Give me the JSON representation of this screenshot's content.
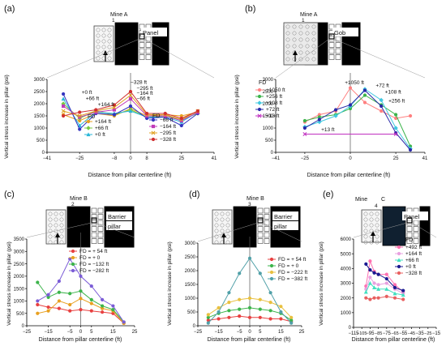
{
  "chart_data": [
    {
      "id": "a",
      "type": "line",
      "panel_label": "(a)",
      "mine_label": "Mine A",
      "mine_number": "1",
      "plan_labels": [
        "Panel"
      ],
      "xlabel": "Distance from pillar centerline (ft)",
      "ylabel": "Vertical stress increase in pillar (psi)",
      "xlim": [
        -41,
        41
      ],
      "ylim": [
        0,
        3000
      ],
      "xticks": [
        "−41",
        "−25",
        "−8",
        "0",
        "8",
        "25",
        "41"
      ],
      "xtick_values": [
        -41,
        -25,
        -8,
        0,
        8,
        25,
        41
      ],
      "yticks": [
        "0",
        "500",
        "1000",
        "1500",
        "2000",
        "2500",
        "3000"
      ],
      "ytick_values": [
        0,
        500,
        1000,
        1500,
        2000,
        2500,
        3000
      ],
      "legend_titles": [
        "FD",
        "FD"
      ],
      "annotations": [
        {
          "text": "+0 ft",
          "x": -24,
          "y": 2400
        },
        {
          "text": "+66 ft",
          "x": -22,
          "y": 2150
        },
        {
          "text": "+164 ft",
          "x": -16,
          "y": 1900
        },
        {
          "text": "−328 ft",
          "x": 0,
          "y": 2820
        },
        {
          "text": "−295 ft",
          "x": 3,
          "y": 2560
        },
        {
          "text": "−164 ft",
          "x": 3,
          "y": 2360
        },
        {
          "text": "−66 ft",
          "x": 3,
          "y": 2150
        }
      ],
      "series": [
        {
          "name": "+164 ft",
          "color": "#e8a020",
          "marker": "circle",
          "x": [
            -33,
            -25,
            -17,
            -8,
            0,
            8,
            17,
            25,
            33
          ],
          "y": [
            1550,
            1300,
            1600,
            1500,
            1800,
            1500,
            1550,
            1500,
            1650
          ]
        },
        {
          "name": "+66 ft",
          "color": "#7ac943",
          "marker": "diamond",
          "x": [
            -33,
            -25,
            -17,
            -8,
            0,
            8,
            17,
            25,
            33
          ],
          "y": [
            2000,
            1400,
            1700,
            1550,
            1750,
            1450,
            1500,
            1350,
            1600
          ]
        },
        {
          "name": "+0 ft",
          "color": "#29b6d8",
          "marker": "triangle",
          "x": [
            -33,
            -25,
            -17,
            -8,
            0,
            8,
            17,
            25,
            33
          ],
          "y": [
            2200,
            1100,
            1650,
            1600,
            1700,
            1450,
            1450,
            1250,
            1650
          ]
        },
        {
          "name": "−66 ft",
          "color": "#3434c0",
          "marker": "circle",
          "x": [
            -33,
            -25,
            -17,
            -8,
            0,
            8,
            17,
            25,
            33
          ],
          "y": [
            2400,
            950,
            1600,
            1550,
            1900,
            1400,
            1450,
            1100,
            1600
          ]
        },
        {
          "name": "−164 ft",
          "color": "#c03ab8",
          "marker": "square",
          "x": [
            -33,
            -25,
            -17,
            -8,
            0,
            8,
            17,
            25,
            33
          ],
          "y": [
            1900,
            1450,
            1650,
            1750,
            2200,
            1500,
            1500,
            1300,
            1650
          ]
        },
        {
          "name": "−295 ft",
          "color": "#e0a020",
          "marker": "x",
          "x": [
            -33,
            -25,
            -17,
            -8,
            0,
            8,
            17,
            25,
            33
          ],
          "y": [
            1700,
            1500,
            1700,
            1850,
            2350,
            1550,
            1550,
            1350,
            1700
          ]
        },
        {
          "name": "−328 ft",
          "color": "#d03030",
          "marker": "circle",
          "x": [
            -33,
            -25,
            -17,
            -8,
            0,
            8,
            17,
            25,
            33
          ],
          "y": [
            1500,
            1650,
            1750,
            1950,
            2500,
            1600,
            1600,
            1400,
            1700
          ]
        }
      ]
    },
    {
      "id": "b",
      "type": "line",
      "panel_label": "(b)",
      "mine_label": "Mine A",
      "mine_number": "1",
      "plan_labels": [
        "Gob"
      ],
      "xlabel": "Distance from pillar centerline (ft)",
      "ylabel": "Vertical stress increase in pillar (psi)",
      "xlim": [
        -41,
        41
      ],
      "ylim": [
        0,
        3000
      ],
      "xticks": [
        "−41",
        "−25",
        "0",
        "25",
        "41"
      ],
      "xtick_values": [
        -41,
        -25,
        0,
        25,
        41
      ],
      "yticks": [
        "0",
        "500",
        "1000",
        "1500",
        "2000",
        "2500",
        "3000"
      ],
      "ytick_values": [
        0,
        500,
        1000,
        1500,
        2000,
        2500,
        3000
      ],
      "legend_titles": [
        "FD"
      ],
      "annotations": [
        {
          "text": "+1050 ft",
          "x": -3,
          "y": 2800
        },
        {
          "text": "+72 ft",
          "x": 14,
          "y": 2680
        },
        {
          "text": "+108 ft",
          "x": 19,
          "y": 2420
        },
        {
          "text": "+256 ft",
          "x": 21,
          "y": 2050
        },
        {
          "text": "+13 ft",
          "x": -16,
          "y": 860
        }
      ],
      "series": [
        {
          "name": "+1050 ft",
          "color": "#ff8080",
          "marker": "circle",
          "x": [
            -25,
            -17,
            -8,
            0,
            8,
            17,
            25,
            33
          ],
          "y": [
            1250,
            1550,
            1700,
            2650,
            2050,
            1700,
            1400,
            1500
          ]
        },
        {
          "name": "+256 ft",
          "color": "#3cb44b",
          "marker": "circle",
          "x": [
            -25,
            -17,
            -8,
            0,
            8,
            17,
            25,
            33
          ],
          "y": [
            1300,
            1450,
            1550,
            1800,
            2350,
            1950,
            1550,
            250
          ]
        },
        {
          "name": "+108 ft",
          "color": "#40c8e0",
          "marker": "diamond",
          "x": [
            -25,
            -17,
            -8,
            0,
            8,
            17,
            25,
            33
          ],
          "y": [
            1050,
            1250,
            1500,
            1900,
            2600,
            2150,
            1000,
            150
          ]
        },
        {
          "name": "+72 ft",
          "color": "#2a2aa8",
          "marker": "circle",
          "x": [
            -25,
            -17,
            -8,
            0,
            8,
            17,
            25,
            33
          ],
          "y": [
            1000,
            1350,
            1750,
            1950,
            2550,
            1900,
            800,
            100
          ]
        },
        {
          "name": "+13 ft",
          "color": "#c030c0",
          "marker": "x",
          "x": [
            -25,
            25
          ],
          "y": [
            750,
            750
          ]
        }
      ]
    },
    {
      "id": "c",
      "type": "line",
      "panel_label": "(c)",
      "mine_label": "Mine B",
      "mine_number": "2",
      "plan_labels": [
        "Barrier",
        "pillar"
      ],
      "xlabel": "Distance from pillar centerline (ft)",
      "ylabel": "Vertical stress increase in pillar (psi)",
      "xlim": [
        -25,
        25
      ],
      "ylim": [
        0,
        3500
      ],
      "xticks": [
        "−25",
        "−15",
        "−5",
        "0",
        "5",
        "15",
        "25"
      ],
      "xtick_values": [
        -25,
        -15,
        -5,
        0,
        5,
        15,
        25
      ],
      "yticks": [
        "0",
        "500",
        "1000",
        "1500",
        "2000",
        "2500",
        "3000",
        "3500"
      ],
      "ytick_values": [
        0,
        500,
        1000,
        1500,
        2000,
        2500,
        3000,
        3500
      ],
      "legend_titles": [],
      "annotations": [],
      "series": [
        {
          "name": "FD = + 54 ft",
          "color": "#e84040",
          "marker": "circle",
          "x": [
            -20,
            -15,
            -10,
            -5,
            0,
            5,
            10,
            15,
            20
          ],
          "y": [
            850,
            750,
            700,
            600,
            650,
            600,
            550,
            500,
            100
          ]
        },
        {
          "name": "FD = + 0",
          "color": "#e8a020",
          "marker": "circle",
          "x": [
            -20,
            -15,
            -10,
            -5,
            0,
            5,
            10,
            15,
            20
          ],
          "y": [
            500,
            600,
            1000,
            850,
            1100,
            900,
            700,
            600,
            100
          ]
        },
        {
          "name": "FD = −132 ft",
          "color": "#3cb44b",
          "marker": "circle",
          "x": [
            -20,
            -15,
            -10,
            -5,
            0,
            5,
            10,
            15,
            20
          ],
          "y": [
            1750,
            1150,
            1350,
            1300,
            1400,
            1050,
            800,
            650,
            150
          ]
        },
        {
          "name": "FD = −282 ft",
          "color": "#7b5cd6",
          "marker": "circle",
          "x": [
            -20,
            -15,
            -10,
            -5,
            0,
            5,
            10,
            15,
            20
          ],
          "y": [
            1000,
            1250,
            1800,
            2700,
            2000,
            1600,
            1050,
            800,
            150
          ]
        }
      ]
    },
    {
      "id": "d",
      "type": "line",
      "panel_label": "(d)",
      "mine_label": "Mine B",
      "mine_number": "3",
      "plan_labels": [
        "Barrier",
        "pillar"
      ],
      "xlabel": "Distance from pillar centerline (ft)",
      "ylabel": "Vertical stress increase in pillar (psi)",
      "xlim": [
        -25,
        25
      ],
      "ylim": [
        0,
        3000
      ],
      "xticks": [
        "−25",
        "−15",
        "−5",
        "0",
        "5",
        "15",
        "25"
      ],
      "xtick_values": [
        -25,
        -15,
        -5,
        0,
        5,
        15,
        25
      ],
      "yticks": [
        "0",
        "500",
        "1000",
        "1500",
        "2000",
        "2500",
        "3000"
      ],
      "ytick_values": [
        0,
        500,
        1000,
        1500,
        2000,
        2500,
        3000
      ],
      "legend_titles": [],
      "annotations": [],
      "series": [
        {
          "name": "FD = + 54 ft",
          "color": "#e84040",
          "marker": "circle",
          "x": [
            -20,
            -15,
            -10,
            -5,
            0,
            5,
            10,
            15,
            20
          ],
          "y": [
            200,
            250,
            300,
            350,
            300,
            300,
            250,
            250,
            150
          ]
        },
        {
          "name": "FD = + 0",
          "color": "#3cb44b",
          "marker": "circle",
          "x": [
            -20,
            -15,
            -10,
            -5,
            0,
            5,
            10,
            15,
            20
          ],
          "y": [
            300,
            450,
            550,
            600,
            650,
            600,
            550,
            450,
            200
          ]
        },
        {
          "name": "FD = −222 ft",
          "color": "#e8c040",
          "marker": "circle",
          "x": [
            -20,
            -15,
            -10,
            -5,
            0,
            5,
            10,
            15,
            20
          ],
          "y": [
            400,
            650,
            850,
            950,
            1000,
            950,
            850,
            700,
            300
          ]
        },
        {
          "name": "FD = −382 ft",
          "color": "#50a0a8",
          "marker": "circle",
          "x": [
            -20,
            -15,
            -10,
            -5,
            0,
            5,
            10,
            15,
            20
          ],
          "y": [
            100,
            500,
            1200,
            1900,
            2450,
            1900,
            1200,
            500,
            100
          ]
        }
      ]
    },
    {
      "id": "e",
      "type": "line",
      "panel_label": "(e)",
      "mine_label": "C",
      "mine_prefix": "Mine",
      "mine_number": "4",
      "plan_labels": [
        "Panel"
      ],
      "xlabel": "Distance from pillar centerline (ft)",
      "ylabel": "Vertical stress increase in pillar (psi)",
      "xlim": [
        -115,
        -15
      ],
      "ylim": [
        0,
        6000
      ],
      "xticks": [
        "−115",
        "−95",
        "−75",
        "−55",
        "−35",
        "−15"
      ],
      "xtick_values": [
        -115,
        -95,
        -75,
        -55,
        -35,
        -15
      ],
      "xticks_minor": [
        "−105",
        "−85",
        "−65",
        "−45",
        "−25"
      ],
      "xticks_minor_values": [
        -105,
        -85,
        -65,
        -45,
        -25
      ],
      "yticks": [
        "0",
        "1000",
        "2000",
        "3000",
        "4000",
        "5000",
        "6000"
      ],
      "ytick_values": [
        0,
        1000,
        2000,
        3000,
        4000,
        5000,
        6000
      ],
      "legend_titles": [
        "FD"
      ],
      "annotations": [],
      "series": [
        {
          "name": "+492 ft",
          "color": "#ff70b0",
          "marker": "circle",
          "x": [
            -100,
            -95,
            -90,
            -85,
            -75,
            -65,
            -55
          ],
          "y": [
            2800,
            4500,
            3800,
            3600,
            3600,
            2900,
            2400
          ]
        },
        {
          "name": "+164 ft",
          "color": "#e8a0e0",
          "marker": "circle",
          "x": [
            -100,
            -95,
            -90,
            -85,
            -75,
            -65,
            -55
          ],
          "y": [
            2600,
            3400,
            3000,
            2900,
            3000,
            2600,
            2300
          ]
        },
        {
          "name": "+66 ft",
          "color": "#40e0c0",
          "marker": "triangle",
          "x": [
            -100,
            -95,
            -90,
            -85,
            -75,
            -65,
            -55
          ],
          "y": [
            2400,
            3000,
            2700,
            2600,
            2600,
            2300,
            2200
          ]
        },
        {
          "name": "+0 ft",
          "color": "#1a1a90",
          "marker": "circle",
          "x": [
            -100,
            -95,
            -90,
            -85,
            -75,
            -65,
            -55
          ],
          "y": [
            4300,
            3900,
            3700,
            3600,
            3300,
            2700,
            2500
          ]
        },
        {
          "name": "−328 ft",
          "color": "#e86060",
          "marker": "circle",
          "x": [
            -100,
            -95,
            -90,
            -85,
            -75,
            -65,
            -55
          ],
          "y": [
            2000,
            1900,
            2000,
            2000,
            2100,
            2000,
            1900
          ]
        }
      ]
    }
  ]
}
